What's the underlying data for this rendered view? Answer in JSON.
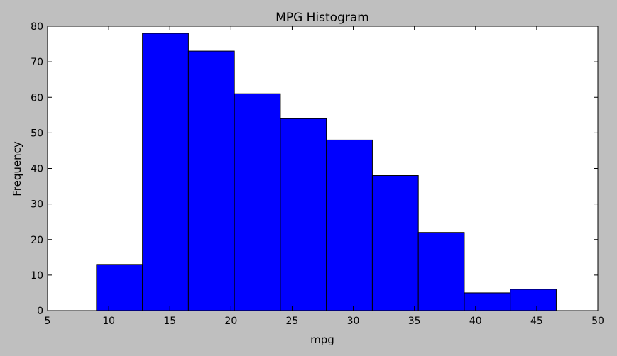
{
  "chart_data": {
    "type": "bar",
    "title": "MPG Histogram",
    "xlabel": "mpg",
    "ylabel": "Frequency",
    "xlim": [
      5,
      50
    ],
    "ylim": [
      0,
      80
    ],
    "xticks": [
      5,
      10,
      15,
      20,
      25,
      30,
      35,
      40,
      45,
      50
    ],
    "yticks": [
      0,
      10,
      20,
      30,
      40,
      50,
      60,
      70,
      80
    ],
    "grid": false,
    "bar_color": "#0000ff",
    "bins": [
      {
        "x0": 9.0,
        "x1": 12.76,
        "count": 13
      },
      {
        "x0": 12.76,
        "x1": 16.52,
        "count": 78
      },
      {
        "x0": 16.52,
        "x1": 20.28,
        "count": 73
      },
      {
        "x0": 20.28,
        "x1": 24.04,
        "count": 61
      },
      {
        "x0": 24.04,
        "x1": 27.8,
        "count": 54
      },
      {
        "x0": 27.8,
        "x1": 31.56,
        "count": 48
      },
      {
        "x0": 31.56,
        "x1": 35.32,
        "count": 38
      },
      {
        "x0": 35.32,
        "x1": 39.08,
        "count": 22
      },
      {
        "x0": 39.08,
        "x1": 42.84,
        "count": 5
      },
      {
        "x0": 42.84,
        "x1": 46.6,
        "count": 6
      }
    ]
  }
}
